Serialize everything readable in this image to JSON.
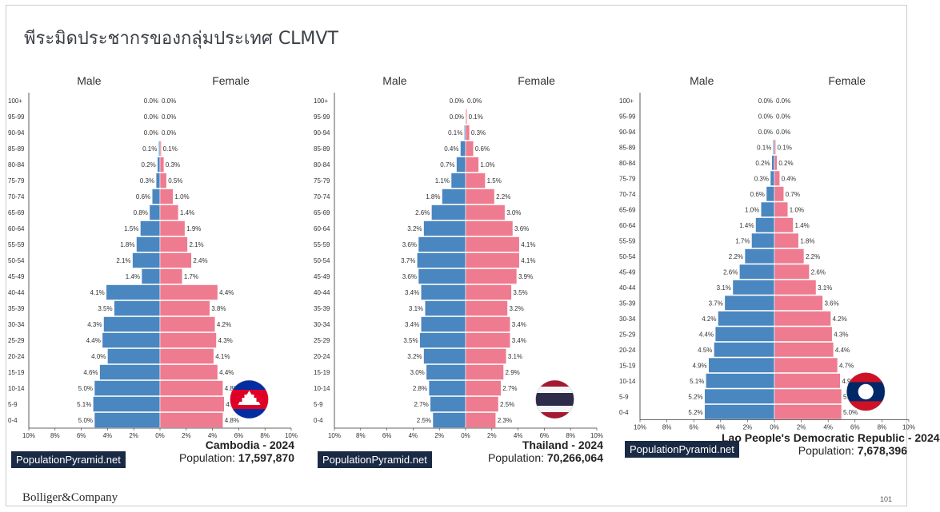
{
  "slide": {
    "title": "พีระมิดประชากรของกลุ่มประเทศ CLMVT",
    "footer_logo": "Bolliger&Company",
    "page_number": "101"
  },
  "colors": {
    "male": "#4a86c0",
    "female": "#ee7b8f",
    "brand_bg": "#1a2a44"
  },
  "chart_data": [
    {
      "type": "bar",
      "subtype": "population-pyramid",
      "country": "Cambodia - 2024",
      "population_label": "Population: ",
      "population": "17,597,870",
      "brand": "PopulationPyramid.net",
      "male_label": "Male",
      "female_label": "Female",
      "flag": "cambodia-flag-icon",
      "categories": [
        "100+",
        "95-99",
        "90-94",
        "85-89",
        "80-84",
        "75-79",
        "70-74",
        "65-69",
        "60-64",
        "55-59",
        "50-54",
        "45-49",
        "40-44",
        "35-39",
        "30-34",
        "25-29",
        "20-24",
        "15-19",
        "10-14",
        "5-9",
        "0-4"
      ],
      "series": [
        {
          "name": "Male",
          "values": [
            0.0,
            0.0,
            0.0,
            0.1,
            0.2,
            0.3,
            0.6,
            0.8,
            1.5,
            1.8,
            2.1,
            1.4,
            4.1,
            3.5,
            4.3,
            4.4,
            4.0,
            4.6,
            5.0,
            5.1,
            5.0
          ]
        },
        {
          "name": "Female",
          "values": [
            0.0,
            0.0,
            0.0,
            0.1,
            0.3,
            0.5,
            1.0,
            1.4,
            1.9,
            2.1,
            2.4,
            1.7,
            4.4,
            3.8,
            4.2,
            4.3,
            4.1,
            4.4,
            4.8,
            4.9,
            4.8
          ]
        }
      ],
      "xticks": [
        "10%",
        "8%",
        "6%",
        "4%",
        "2%",
        "0%",
        "2%",
        "4%",
        "6%",
        "8%",
        "10%"
      ],
      "xlim": [
        -10,
        10
      ]
    },
    {
      "type": "bar",
      "subtype": "population-pyramid",
      "country": "Thailand - 2024",
      "population_label": "Population: ",
      "population": "70,266,064",
      "brand": "PopulationPyramid.net",
      "male_label": "Male",
      "female_label": "Female",
      "flag": "thailand-flag-icon",
      "categories": [
        "100+",
        "95-99",
        "90-94",
        "85-89",
        "80-84",
        "75-79",
        "70-74",
        "65-69",
        "60-64",
        "55-59",
        "50-54",
        "45-49",
        "40-44",
        "35-39",
        "30-34",
        "25-29",
        "20-24",
        "15-19",
        "10-14",
        "5-9",
        "0-4"
      ],
      "series": [
        {
          "name": "Male",
          "values": [
            0.0,
            0.0,
            0.1,
            0.4,
            0.7,
            1.1,
            1.8,
            2.6,
            3.2,
            3.6,
            3.7,
            3.6,
            3.4,
            3.1,
            3.4,
            3.5,
            3.2,
            3.0,
            2.8,
            2.7,
            2.5
          ]
        },
        {
          "name": "Female",
          "values": [
            0.0,
            0.1,
            0.3,
            0.6,
            1.0,
            1.5,
            2.2,
            3.0,
            3.6,
            4.1,
            4.1,
            3.9,
            3.5,
            3.2,
            3.4,
            3.4,
            3.1,
            2.9,
            2.7,
            2.5,
            2.3
          ]
        }
      ],
      "xticks": [
        "10%",
        "8%",
        "6%",
        "4%",
        "2%",
        "0%",
        "2%",
        "4%",
        "6%",
        "8%",
        "10%"
      ],
      "xlim": [
        -10,
        10
      ]
    },
    {
      "type": "bar",
      "subtype": "population-pyramid",
      "country": "Lao People's Democratic Republic - 2024",
      "population_label": "Population: ",
      "population": "7,678,396",
      "brand": "PopulationPyramid.net",
      "male_label": "Male",
      "female_label": "Female",
      "flag": "laos-flag-icon",
      "categories": [
        "100+",
        "95-99",
        "90-94",
        "85-89",
        "80-84",
        "75-79",
        "70-74",
        "65-69",
        "60-64",
        "55-59",
        "50-54",
        "45-49",
        "40-44",
        "35-39",
        "30-34",
        "25-29",
        "20-24",
        "15-19",
        "10-14",
        "5-9",
        "0-4"
      ],
      "series": [
        {
          "name": "Male",
          "values": [
            0.0,
            0.0,
            0.0,
            0.1,
            0.2,
            0.3,
            0.6,
            1.0,
            1.4,
            1.7,
            2.2,
            2.6,
            3.1,
            3.7,
            4.2,
            4.4,
            4.5,
            4.9,
            5.1,
            5.2,
            5.2
          ]
        },
        {
          "name": "Female",
          "values": [
            0.0,
            0.0,
            0.0,
            0.1,
            0.2,
            0.4,
            0.7,
            1.0,
            1.4,
            1.8,
            2.2,
            2.6,
            3.1,
            3.6,
            4.2,
            4.3,
            4.4,
            4.7,
            4.9,
            5.0,
            5.0
          ]
        }
      ],
      "xticks": [
        "10%",
        "8%",
        "6%",
        "4%",
        "2%",
        "0%",
        "2%",
        "4%",
        "6%",
        "8%",
        "10%"
      ],
      "xlim": [
        -10,
        10
      ]
    }
  ]
}
